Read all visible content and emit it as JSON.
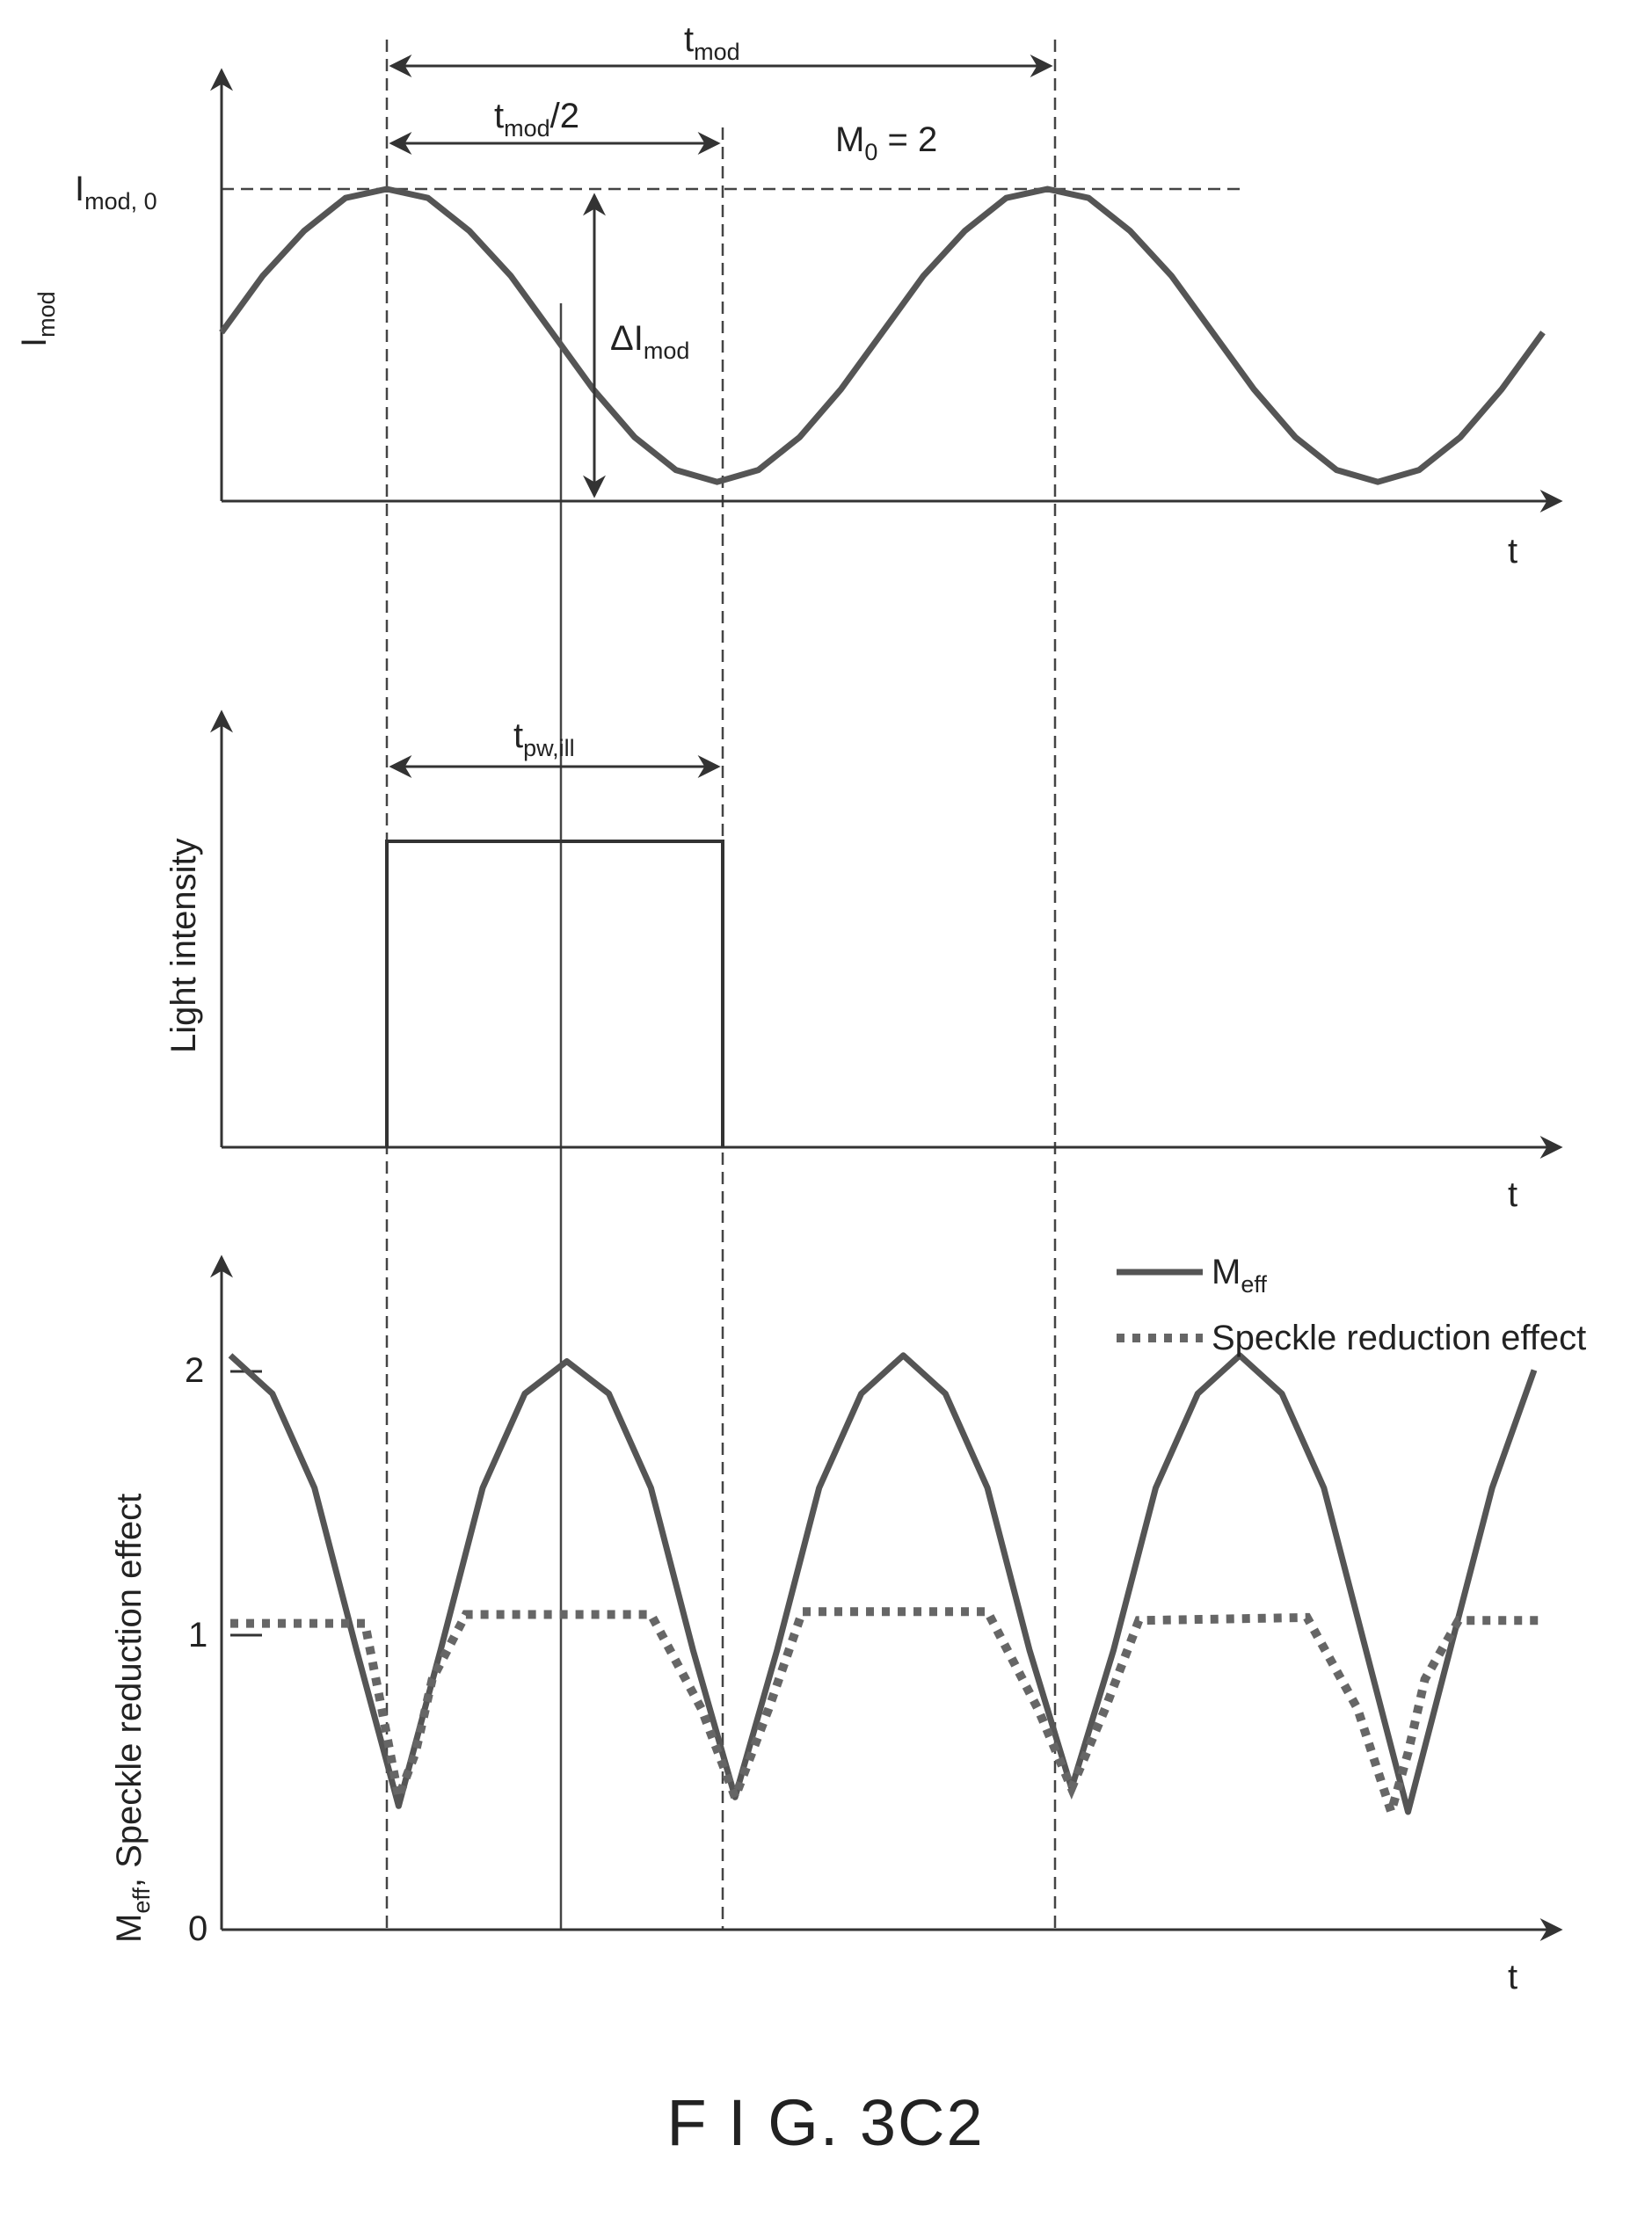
{
  "chart_data": [
    {
      "type": "line",
      "title": "",
      "xlabel": "t",
      "ylabel": "I",
      "ylabel_sub": "mod",
      "series": [
        {
          "x": [
            0,
            0.125,
            0.25,
            0.375,
            0.5,
            0.625,
            0.75,
            0.875,
            1.0,
            1.125,
            1.25,
            1.375,
            1.5,
            1.625,
            1.75,
            1.875,
            2.0,
            2.125,
            2.25,
            2.375,
            2.5,
            2.625,
            2.75,
            2.875,
            3.0,
            3.125,
            3.25,
            3.375,
            3.5,
            3.625,
            3.75,
            3.875,
            4.0
          ],
          "y": [
            0.52,
            0.71,
            0.86,
            0.97,
            1.0,
            0.97,
            0.86,
            0.71,
            0.52,
            0.33,
            0.17,
            0.06,
            0.02,
            0.06,
            0.17,
            0.33,
            0.52,
            0.71,
            0.86,
            0.97,
            1.0,
            0.97,
            0.86,
            0.71,
            0.52,
            0.33,
            0.17,
            0.06,
            0.02,
            0.06,
            0.17,
            0.33,
            0.52
          ]
        }
      ],
      "annotations": [
        {
          "main": "t",
          "sub": "mod"
        },
        {
          "main": "t",
          "sub": "mod",
          "rest": "/2"
        },
        {
          "main": "M",
          "sub": "0",
          "rest": " = 2"
        },
        {
          "main": "I",
          "sub": "mod, 0"
        },
        {
          "main": "ΔI",
          "sub": "mod"
        }
      ]
    },
    {
      "type": "line",
      "title": "",
      "xlabel": "t",
      "ylabel": "Light intensity",
      "series": [
        {
          "x": [
            0,
            1,
            1,
            3,
            3,
            8
          ],
          "y": [
            0,
            0,
            1,
            1,
            0,
            0
          ]
        }
      ],
      "annotations": [
        {
          "main": "t",
          "sub": "pw,ill"
        }
      ]
    },
    {
      "type": "line",
      "title": "",
      "xlabel": "t",
      "ylabel_parts": {
        "main": "M",
        "sub": "eff",
        "rest": ", Speckle reduction effect"
      },
      "yticks": [
        "0",
        "1",
        "2"
      ],
      "ylim": [
        0,
        2.3
      ],
      "legend_position": "top-right",
      "legend": [
        {
          "main": "M",
          "sub": "eff"
        },
        {
          "main": "Speckle reduction effect",
          "sub": ""
        }
      ],
      "series": [
        {
          "style": "solid",
          "x": [
            0,
            0.25,
            0.5,
            0.75,
            1.0,
            1.25,
            1.5,
            1.75,
            2.0,
            2.25,
            2.5,
            2.75,
            3.0,
            3.25,
            3.5,
            3.75,
            4.0,
            4.25,
            4.5,
            4.75,
            5.0,
            5.25,
            5.5,
            5.75,
            6.0,
            6.25,
            6.5,
            6.75,
            7.0,
            7.25,
            7.5,
            7.75
          ],
          "y": [
            1.95,
            1.82,
            1.5,
            0.95,
            0.42,
            0.95,
            1.5,
            1.82,
            1.93,
            1.82,
            1.5,
            0.95,
            0.45,
            0.95,
            1.5,
            1.82,
            1.95,
            1.82,
            1.5,
            0.95,
            0.48,
            0.95,
            1.5,
            1.82,
            1.95,
            1.82,
            1.5,
            0.95,
            0.4,
            0.95,
            1.5,
            1.9
          ]
        },
        {
          "style": "dotted",
          "x": [
            0,
            0.8,
            0.9,
            1.0,
            1.1,
            1.2,
            1.4,
            2.5,
            2.8,
            3.0,
            3.2,
            3.4,
            4.5,
            4.8,
            5.0,
            5.2,
            5.4,
            6.4,
            6.7,
            6.9,
            7.0,
            7.1,
            7.3,
            7.8
          ],
          "y": [
            1.04,
            1.04,
            0.75,
            0.45,
            0.6,
            0.85,
            1.07,
            1.07,
            0.75,
            0.45,
            0.75,
            1.08,
            1.08,
            0.75,
            0.48,
            0.75,
            1.05,
            1.06,
            0.75,
            0.4,
            0.6,
            0.85,
            1.05,
            1.05
          ]
        }
      ]
    }
  ],
  "figure_label": "F I G. 3C2"
}
